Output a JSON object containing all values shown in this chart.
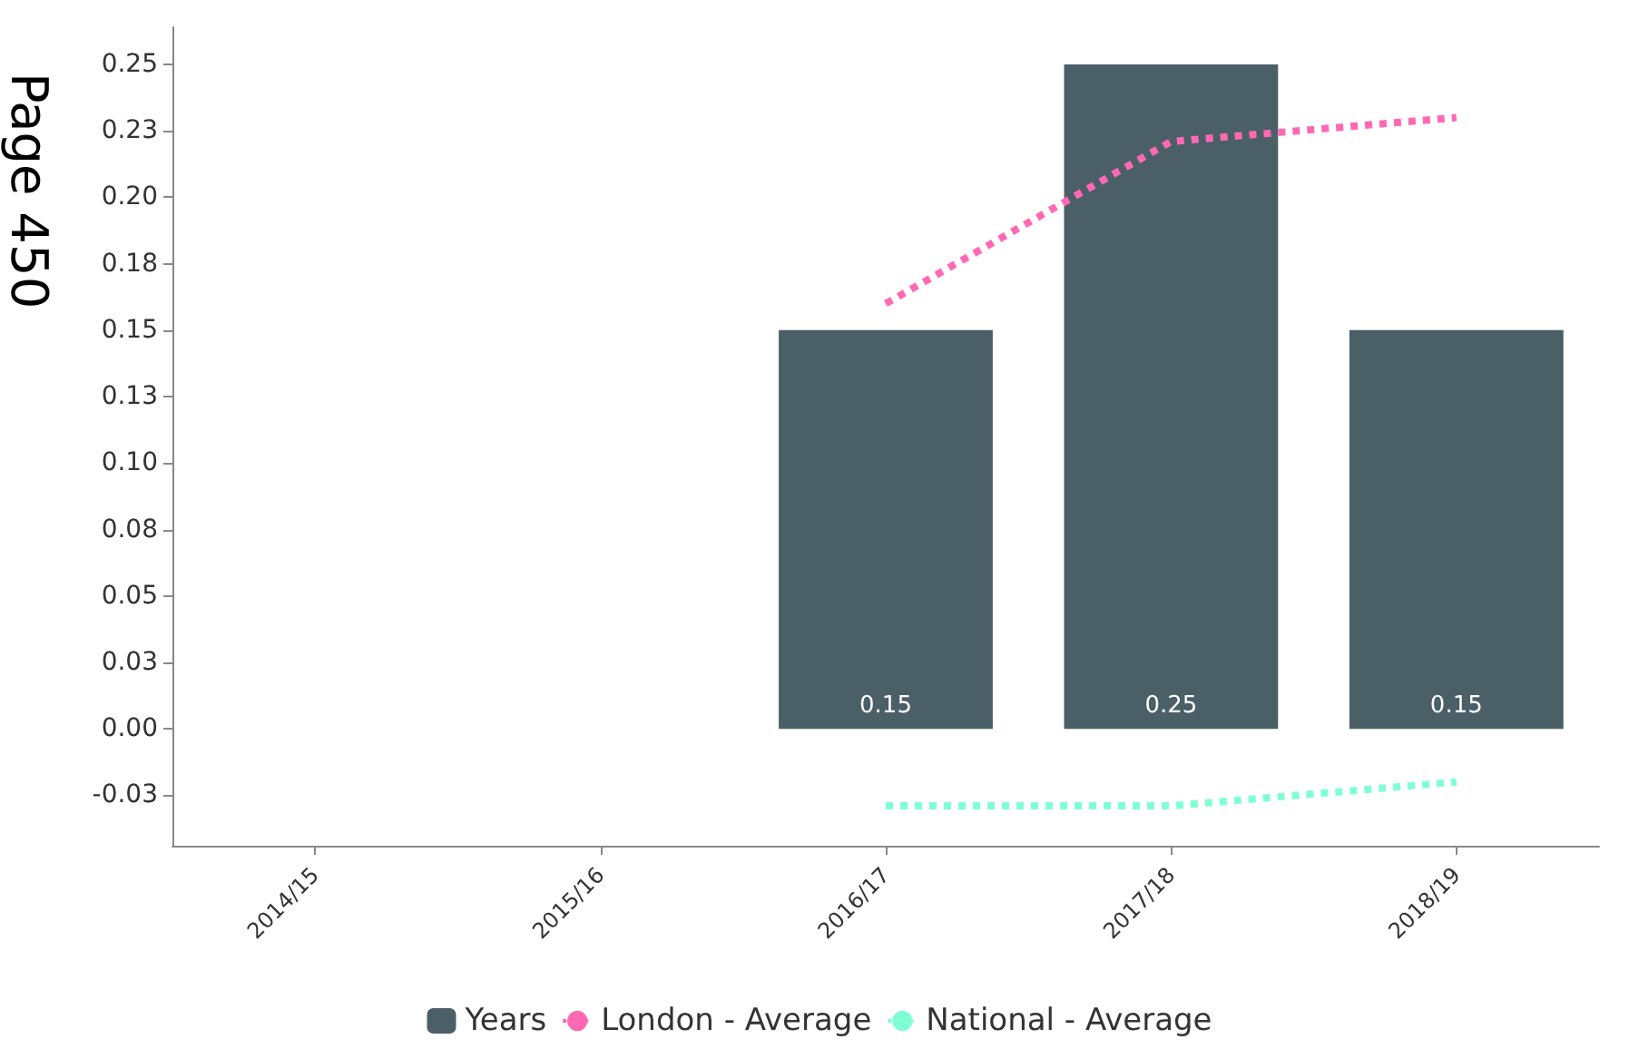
{
  "chart_data": {
    "type": "bar",
    "categories": [
      "2014/15",
      "2015/16",
      "2016/17",
      "2017/18",
      "2018/19"
    ],
    "series": [
      {
        "name": "Years",
        "color": "#4a5f66",
        "values": [
          null,
          null,
          0.15,
          0.25,
          0.15
        ],
        "value_labels": [
          null,
          null,
          "0.15",
          "0.25",
          "0.15"
        ]
      },
      {
        "name": "London - Average",
        "type": "line",
        "color": "#ff69b4",
        "line_style": "dotted",
        "values": [
          null,
          null,
          0.16,
          0.221,
          0.23
        ]
      },
      {
        "name": "National - Average",
        "type": "line",
        "color": "#7fffd4",
        "line_style": "dotted",
        "values": [
          null,
          null,
          -0.029,
          -0.029,
          -0.02
        ]
      }
    ],
    "ylim": [
      -0.044,
      0.264
    ],
    "yticks": [
      {
        "value": -0.025,
        "label": "-0.03"
      },
      {
        "value": 0,
        "label": "0.00"
      },
      {
        "value": 0.025,
        "label": "0.03"
      },
      {
        "value": 0.05,
        "label": "0.05"
      },
      {
        "value": 0.075,
        "label": "0.08"
      },
      {
        "value": 0.1,
        "label": "0.10"
      },
      {
        "value": 0.125,
        "label": "0.13"
      },
      {
        "value": 0.15,
        "label": "0.15"
      },
      {
        "value": 0.175,
        "label": "0.18"
      },
      {
        "value": 0.2,
        "label": "0.20"
      },
      {
        "value": 0.225,
        "label": "0.23"
      },
      {
        "value": 0.25,
        "label": "0.25"
      }
    ],
    "marker": "none",
    "grid": false,
    "legend": "bottom",
    "annotations": [
      "Page 450"
    ]
  }
}
